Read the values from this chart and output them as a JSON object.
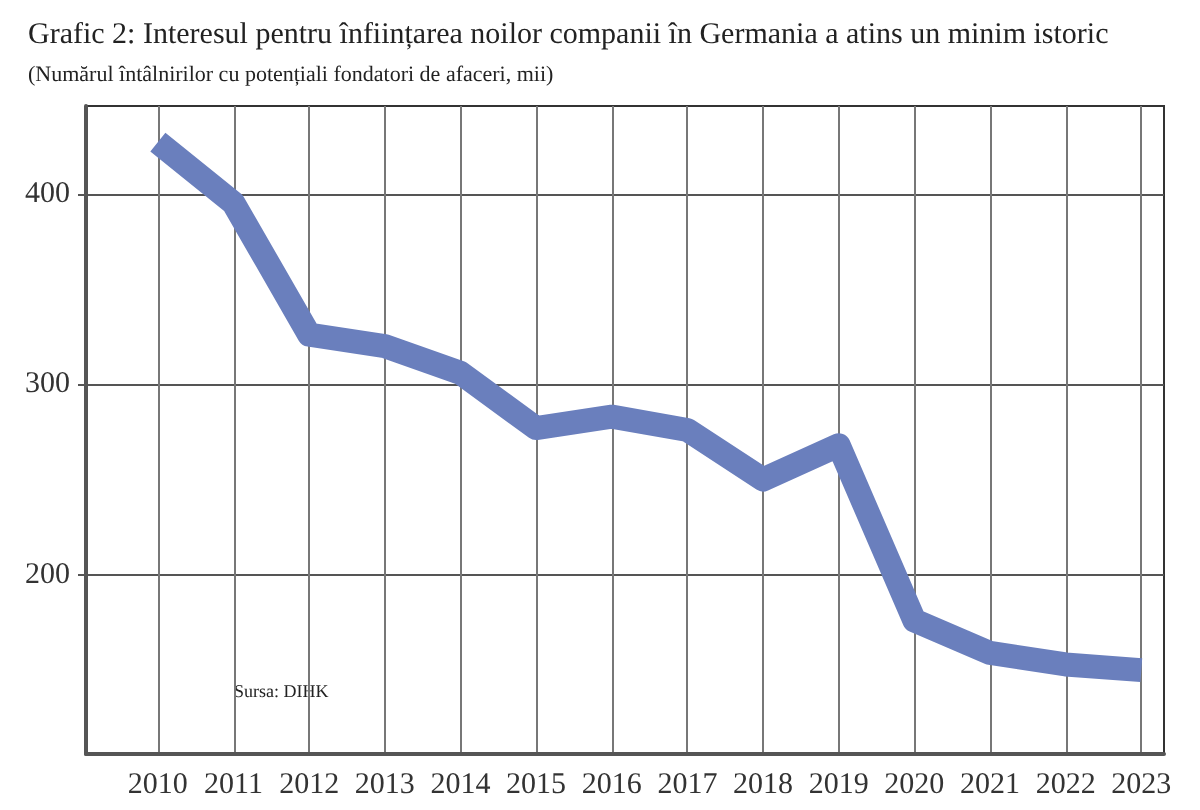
{
  "chart_data": {
    "type": "line",
    "title": "Grafic 2: Interesul pentru înființarea noilor companii în Germania a atins un minim istoric",
    "subtitle": "(Numărul întâlnirilor cu potențiali fondatori de afaceri, mii)",
    "x": [
      2010,
      2011,
      2012,
      2013,
      2014,
      2015,
      2016,
      2017,
      2018,
      2019,
      2020,
      2021,
      2022,
      2023
    ],
    "series": [
      {
        "color": "#6a7fbd",
        "values": [
          427,
          395,
          326,
          320,
          306,
          277,
          283,
          276,
          250,
          268,
          176,
          159,
          153,
          150
        ]
      }
    ],
    "xlim": [
      2009.05,
      2023.3
    ],
    "xticks": [
      2010,
      2011,
      2012,
      2013,
      2014,
      2015,
      2016,
      2017,
      2018,
      2019,
      2020,
      2021,
      2022,
      2023
    ],
    "ylim": [
      106,
      446
    ],
    "yticks": [
      200,
      300,
      400
    ],
    "grid": true,
    "marker": "none",
    "line_style": "solid",
    "annotations": [
      "Sursa: DIHK"
    ]
  }
}
